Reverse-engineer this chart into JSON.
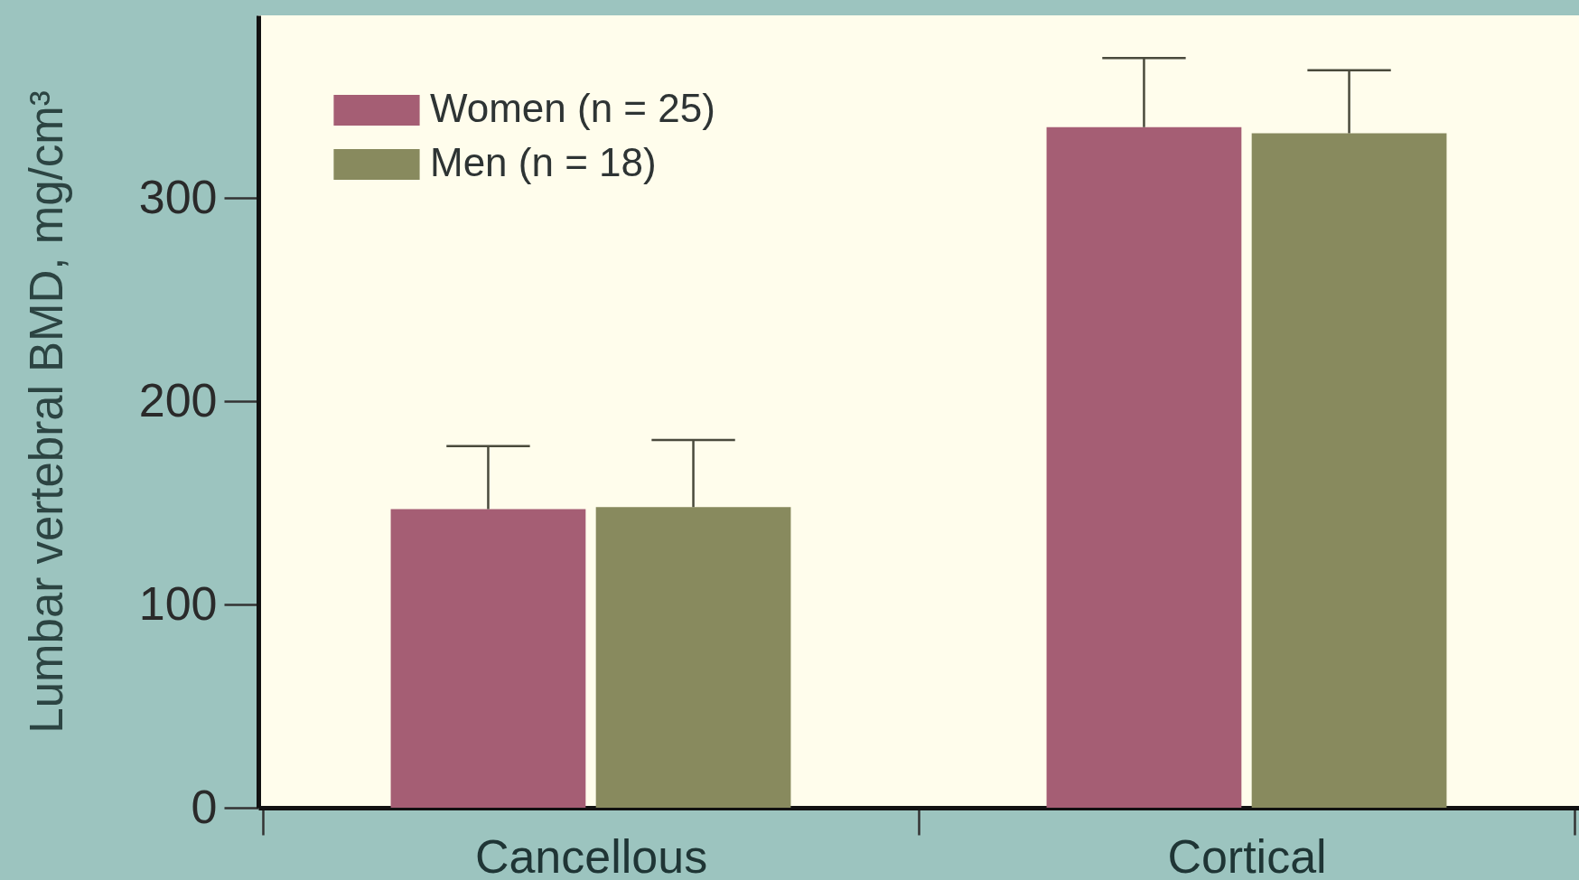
{
  "chart_data": {
    "type": "bar",
    "ylabel": "Lumbar vertebral BMD, mg/cm³",
    "categories": [
      "Cancellous",
      "Cortical"
    ],
    "series": [
      {
        "name": "Women (n = 25)",
        "color": "#a55e74",
        "values": [
          147,
          335
        ],
        "errors": [
          [
            147,
            178
          ],
          [
            335,
            369
          ]
        ]
      },
      {
        "name": "Men (n = 18)",
        "color": "#888a5e",
        "values": [
          148,
          332
        ],
        "errors": [
          [
            148,
            181
          ],
          [
            332,
            363
          ]
        ]
      }
    ],
    "ylim": [
      0,
      390
    ],
    "yticks": [
      0,
      100,
      200,
      300
    ],
    "legend": "top left"
  }
}
